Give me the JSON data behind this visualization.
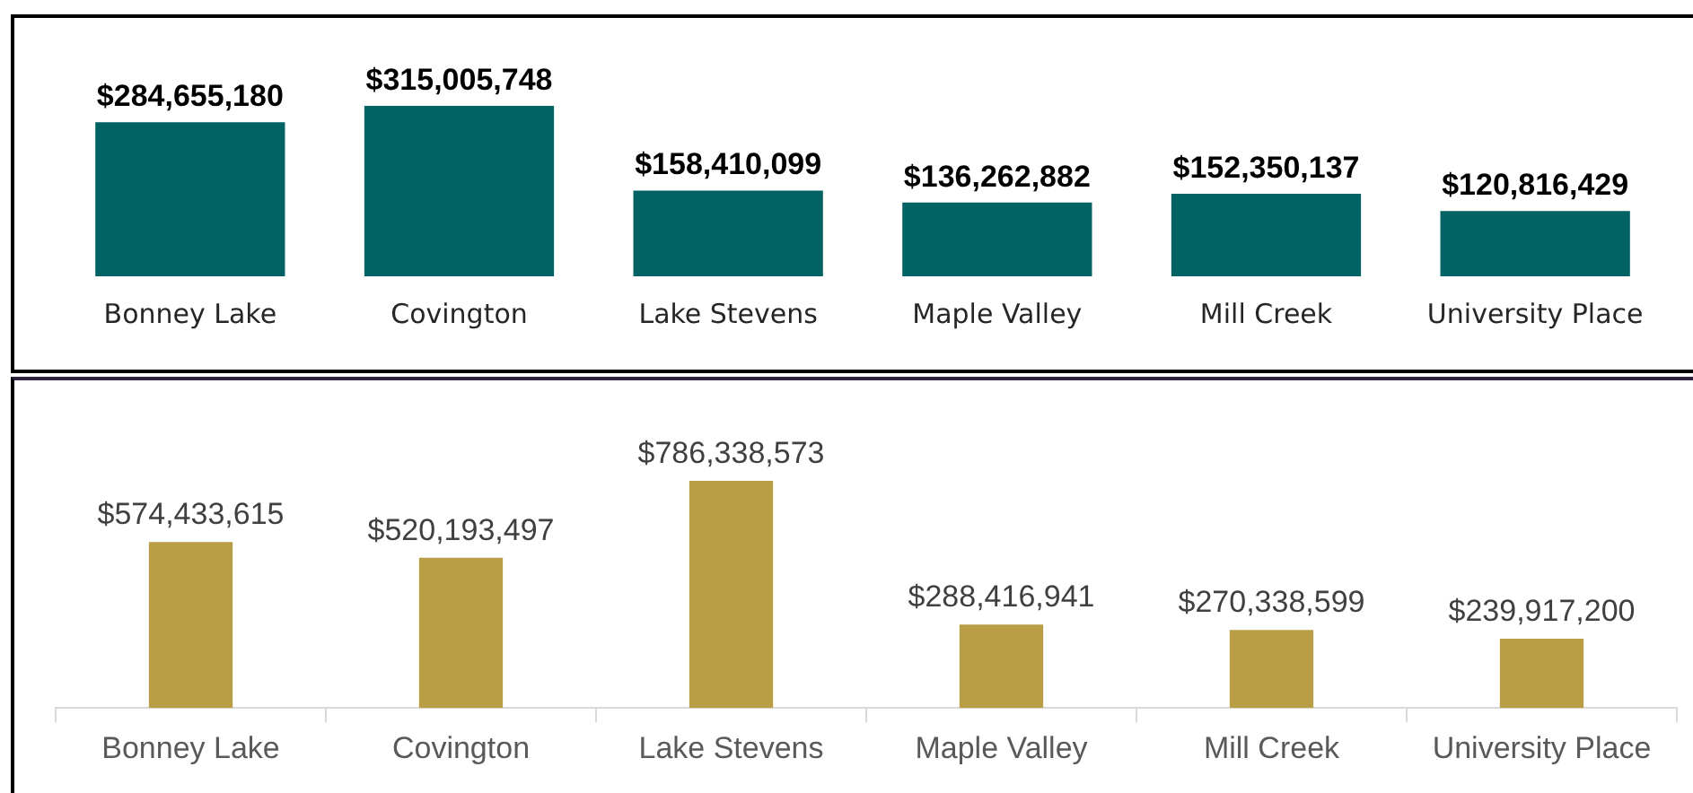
{
  "chart_data": [
    {
      "type": "bar",
      "categories": [
        "Bonney Lake",
        "Covington",
        "Lake Stevens",
        "Maple Valley",
        "Mill Creek",
        "University Place"
      ],
      "values": [
        284655180,
        315005748,
        158410099,
        136262882,
        152350137,
        120816429
      ],
      "color": "#036264",
      "value_labels": [
        "$284,655,180",
        "$315,005,748",
        "$158,410,099",
        "$136,262,882",
        "$152,350,137",
        "$120,816,429"
      ],
      "tick_labels": "x"
    },
    {
      "type": "bar",
      "categories": [
        "Bonney Lake",
        "Covington",
        "Lake Stevens",
        "Maple Valley",
        "Mill Creek",
        "University Place"
      ],
      "values": [
        574433615,
        520193497,
        786338573,
        288416941,
        270338599,
        239917200
      ],
      "color": "#b99e45",
      "value_labels": [
        "$574,433,615",
        "$520,193,497",
        "$786,338,573",
        "$288,416,941",
        "$270,338,599",
        "$239,917,200"
      ],
      "tick_labels": "x"
    }
  ]
}
